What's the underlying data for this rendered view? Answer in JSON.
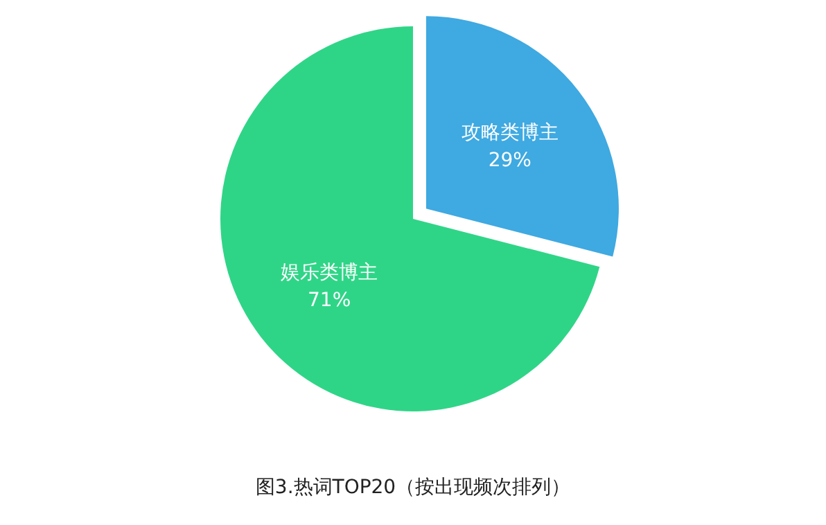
{
  "chart_data": {
    "type": "pie",
    "title": "图3.热词TOP20（按出现频次排列）",
    "categories": [
      "攻略类博主",
      "娱乐类博主"
    ],
    "values": [
      29,
      71
    ],
    "colors": [
      "#3fa9e1",
      "#2fd587"
    ],
    "value_labels": [
      "29%",
      "71%"
    ]
  }
}
